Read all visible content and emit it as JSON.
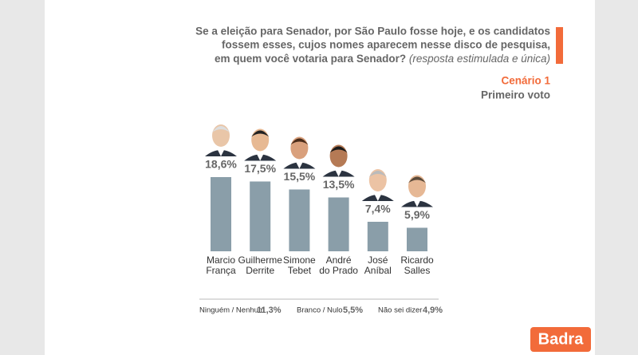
{
  "chart_data": {
    "type": "bar",
    "title": [
      "Se a eleição para Senador, por São Paulo fosse hoje, e os candidatos",
      "fossem esses, cujos nomes aparecem nesse disco de pesquisa,",
      "em quem você votaria para Senador?"
    ],
    "title_note": "(resposta estimulada e única)",
    "subtitle": "Cenário 1",
    "subtitle_2": "Primeiro voto",
    "categories": [
      "Marcio\nFrança",
      "Guilherme\nDerrite",
      "Simone\nTebet",
      "André\ndo Prado",
      "José\nAníbal",
      "Ricardo\nSalles"
    ],
    "values": [
      18.6,
      17.5,
      15.5,
      13.5,
      7.4,
      5.9
    ],
    "value_labels": [
      "18,6%",
      "17,5%",
      "15,5%",
      "13,5%",
      "7,4%",
      "5,9%"
    ],
    "color": "#8a9ea9",
    "ylim": [
      0,
      20
    ],
    "other_answers": [
      {
        "label": "Ninguém / Nenhum",
        "value": "11,3%"
      },
      {
        "label": "Branco / Nulo",
        "value": "5,5%"
      },
      {
        "label": "Não sei dizer",
        "value": "4,9%"
      }
    ],
    "logo": "Badra"
  }
}
